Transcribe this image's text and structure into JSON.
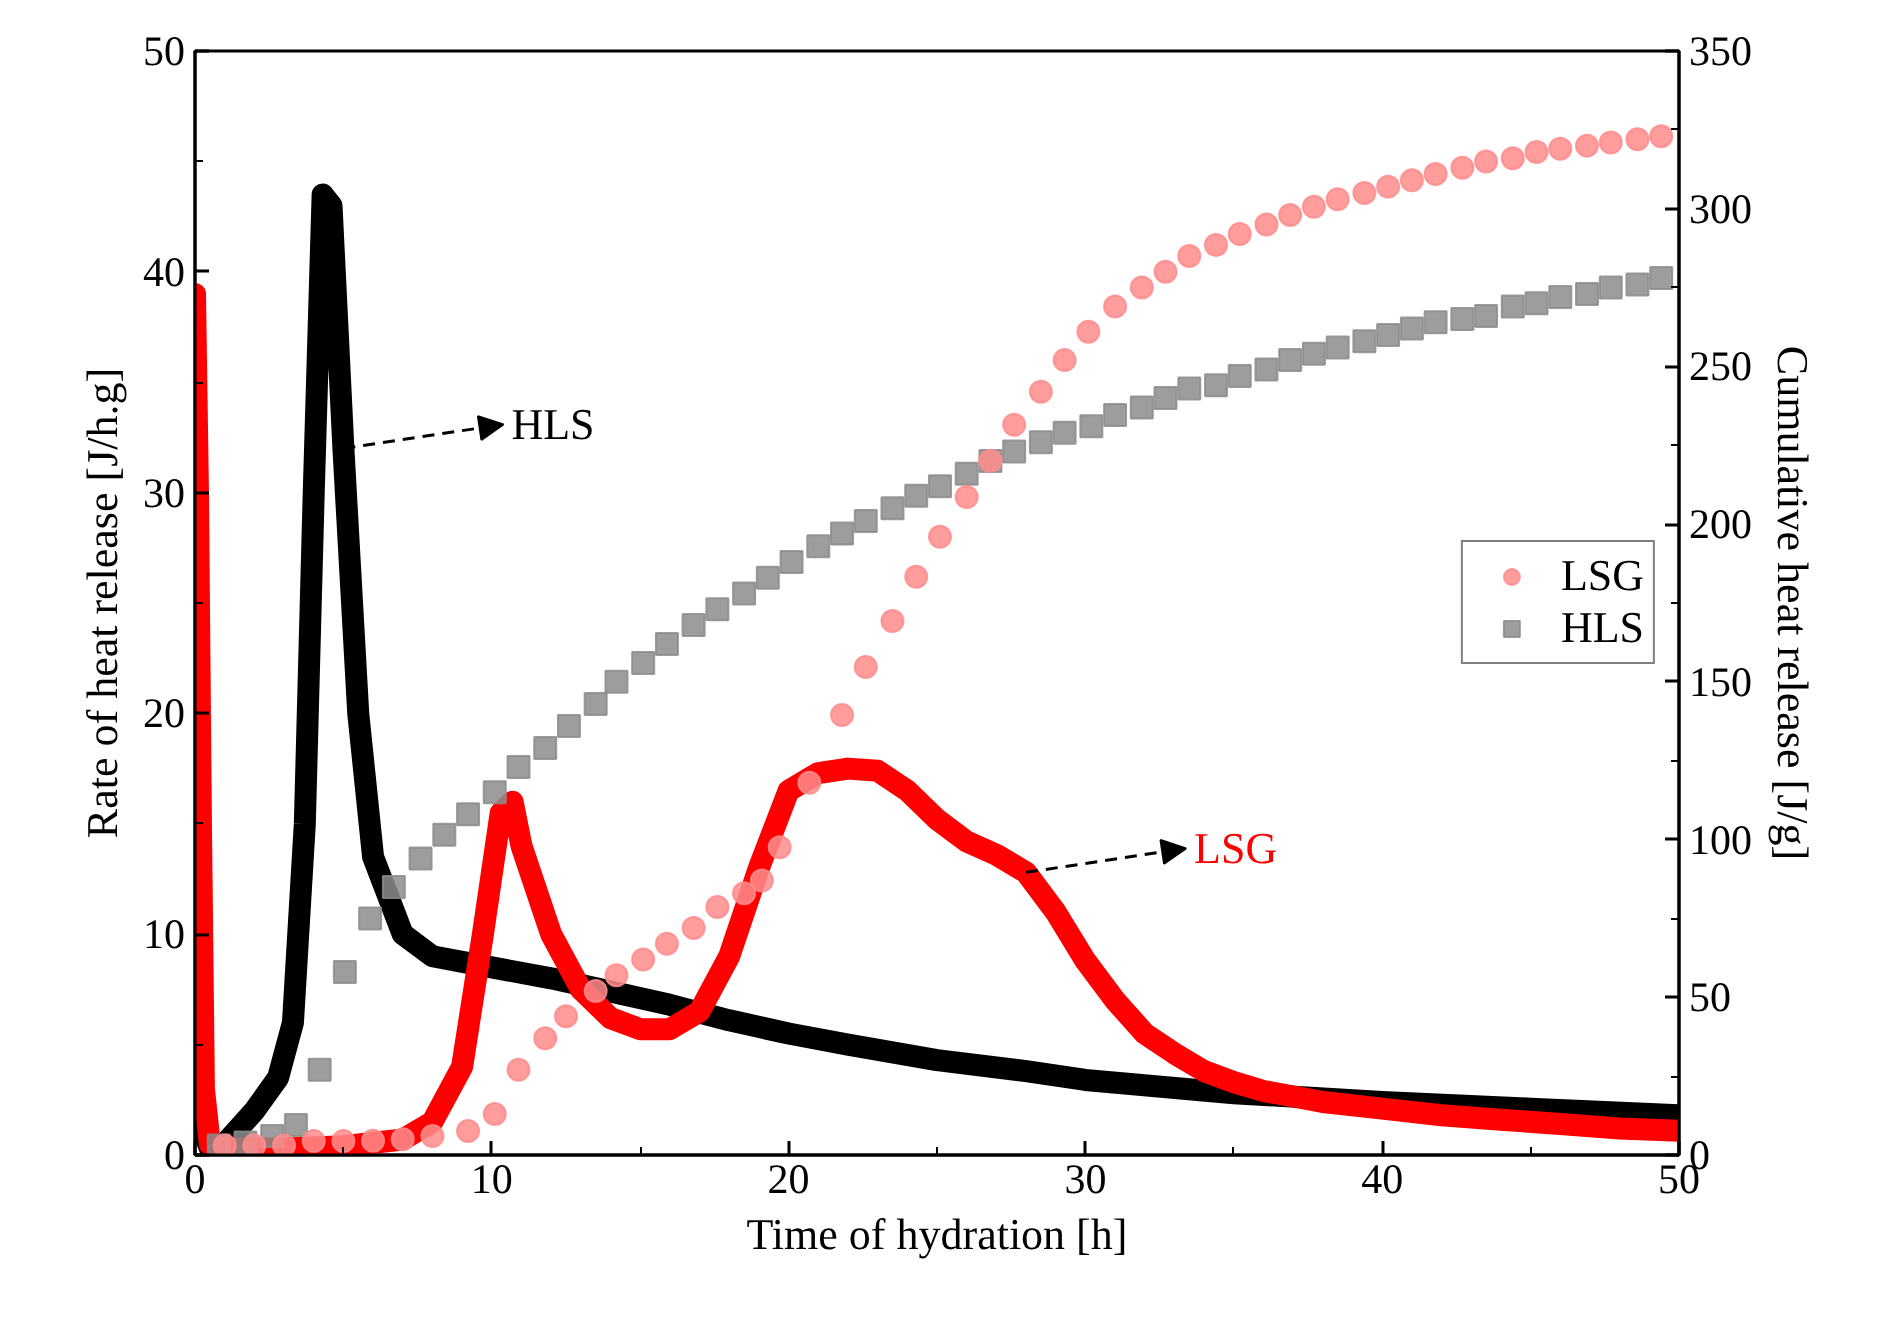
{
  "chart_data": {
    "type": "line",
    "xlabel": "Time of hydration [h]",
    "ylabel": "Rate of heat release [J/h.g]",
    "y2label": "Cumulative heat release [J/g]",
    "xlim": [
      0,
      50
    ],
    "xticks": [
      0,
      10,
      20,
      30,
      40,
      50
    ],
    "ylim": [
      0,
      50
    ],
    "yticks": [
      0,
      10,
      20,
      30,
      40,
      50
    ],
    "y2lim": [
      0,
      350
    ],
    "y2ticks": [
      0,
      50,
      100,
      150,
      200,
      250,
      300,
      350
    ],
    "grid": false,
    "legend": "right",
    "annotations": [
      {
        "text": "HLS",
        "x": 5,
        "y": 32
      },
      {
        "text": "LSG",
        "x": 28,
        "y": 12.8
      }
    ],
    "series": [
      {
        "color": "#000000",
        "x": [
          0,
          0.1,
          0.2,
          0.3,
          0.5,
          1,
          2,
          2.8,
          3.3,
          3.7,
          4,
          4.3,
          4.6,
          5,
          5.5,
          6,
          7,
          8,
          10,
          12,
          14,
          16,
          18,
          20,
          22,
          25,
          28,
          30,
          35,
          40,
          45,
          50
        ],
        "values": [
          32,
          20,
          8,
          1,
          0.3,
          0.5,
          2,
          3.5,
          6,
          15,
          30,
          43.5,
          43,
          32,
          20,
          13.5,
          10,
          9,
          8.5,
          8,
          7.4,
          6.8,
          6.1,
          5.5,
          5,
          4.3,
          3.8,
          3.4,
          2.8,
          2.4,
          2.1,
          1.8
        ]
      },
      {
        "color": "#ff0000",
        "x": [
          0,
          0.1,
          0.2,
          0.3,
          0.5,
          1,
          3,
          5,
          7,
          8,
          9,
          9.7,
          10.3,
          10.7,
          11,
          12,
          13,
          14,
          15,
          16,
          17,
          18,
          19,
          20,
          21,
          22,
          23,
          24,
          25,
          26,
          27,
          28,
          29,
          30,
          31,
          32,
          33,
          34,
          35,
          36,
          38,
          40,
          42,
          44,
          46,
          48,
          50
        ],
        "values": [
          39,
          30,
          15,
          3,
          0.5,
          0.3,
          0.3,
          0.4,
          0.7,
          1.5,
          4,
          10,
          15.5,
          16,
          14,
          10,
          7.5,
          6.2,
          5.7,
          5.7,
          6.5,
          9,
          13,
          16.5,
          17.3,
          17.5,
          17.4,
          16.5,
          15.2,
          14.2,
          13.6,
          12.8,
          11,
          8.8,
          7,
          5.5,
          4.6,
          3.8,
          3.3,
          2.9,
          2.4,
          2.1,
          1.8,
          1.6,
          1.4,
          1.2,
          1.1
        ]
      },
      {
        "type": "scatter",
        "name": "LSG",
        "marker": "circle",
        "axis": "y2",
        "color": "#ff8c8c",
        "x": [
          1,
          2,
          3,
          4,
          5,
          6,
          7,
          8,
          9.2,
          10.1,
          10.9,
          11.8,
          12.5,
          13.5,
          14.2,
          15.1,
          15.9,
          16.8,
          17.6,
          18.5,
          19.1,
          19.7,
          20.7,
          21.8,
          22.6,
          23.5,
          24.3,
          25.1,
          26,
          26.8,
          27.6,
          28.5,
          29.3,
          30.1,
          31,
          31.9,
          32.7,
          33.5,
          34.4,
          35.2,
          36.1,
          36.9,
          37.7,
          38.5,
          39.4,
          40.2,
          41,
          41.8,
          42.7,
          43.5,
          44.4,
          45.2,
          46,
          46.9,
          47.7,
          48.6,
          49.4
        ],
        "values": [
          3,
          3,
          3,
          4.4,
          4.4,
          4.5,
          5,
          6,
          7.6,
          13,
          27,
          37,
          44,
          52,
          57,
          62,
          67,
          72,
          78.6,
          83,
          87,
          97.6,
          118,
          139.5,
          154.7,
          169.3,
          183.3,
          196,
          208.6,
          220,
          231.5,
          242,
          252,
          261,
          269,
          275,
          280,
          285,
          288.5,
          292,
          295,
          298,
          300.6,
          303,
          305,
          307,
          309,
          311,
          313,
          315,
          316,
          318,
          319,
          320,
          321,
          322,
          323
        ]
      },
      {
        "type": "scatter",
        "name": "HLS",
        "marker": "square",
        "axis": "y2",
        "color": "#8c8c8c",
        "x": [
          0.8,
          1.7,
          2.6,
          3.4,
          4.2,
          5.05,
          5.9,
          6.7,
          7.6,
          8.4,
          9.2,
          10.1,
          10.9,
          11.8,
          12.6,
          13.5,
          14.2,
          15.1,
          15.9,
          16.8,
          17.6,
          18.5,
          19.3,
          20.1,
          21,
          21.8,
          22.6,
          23.5,
          24.3,
          25.1,
          26,
          26.8,
          27.6,
          28.5,
          29.3,
          30.2,
          31,
          31.9,
          32.7,
          33.5,
          34.4,
          35.2,
          36.1,
          36.9,
          37.7,
          38.5,
          39.4,
          40.2,
          41,
          41.8,
          42.7,
          43.5,
          44.4,
          45.2,
          46,
          46.9,
          47.7,
          48.6,
          49.4
        ],
        "values": [
          3,
          4,
          6,
          9.5,
          27,
          58,
          75,
          85,
          94,
          101.5,
          108,
          115,
          123,
          129,
          136,
          143,
          150,
          156,
          162,
          168,
          173,
          178,
          183,
          188,
          193,
          197,
          201,
          205,
          209,
          212,
          216,
          220,
          223,
          226,
          229,
          231,
          234.6,
          237,
          240,
          243,
          244,
          247,
          249,
          252,
          254,
          256,
          258,
          260,
          262,
          264,
          265,
          266,
          269,
          270,
          272,
          273,
          275,
          276,
          278
        ]
      }
    ]
  }
}
